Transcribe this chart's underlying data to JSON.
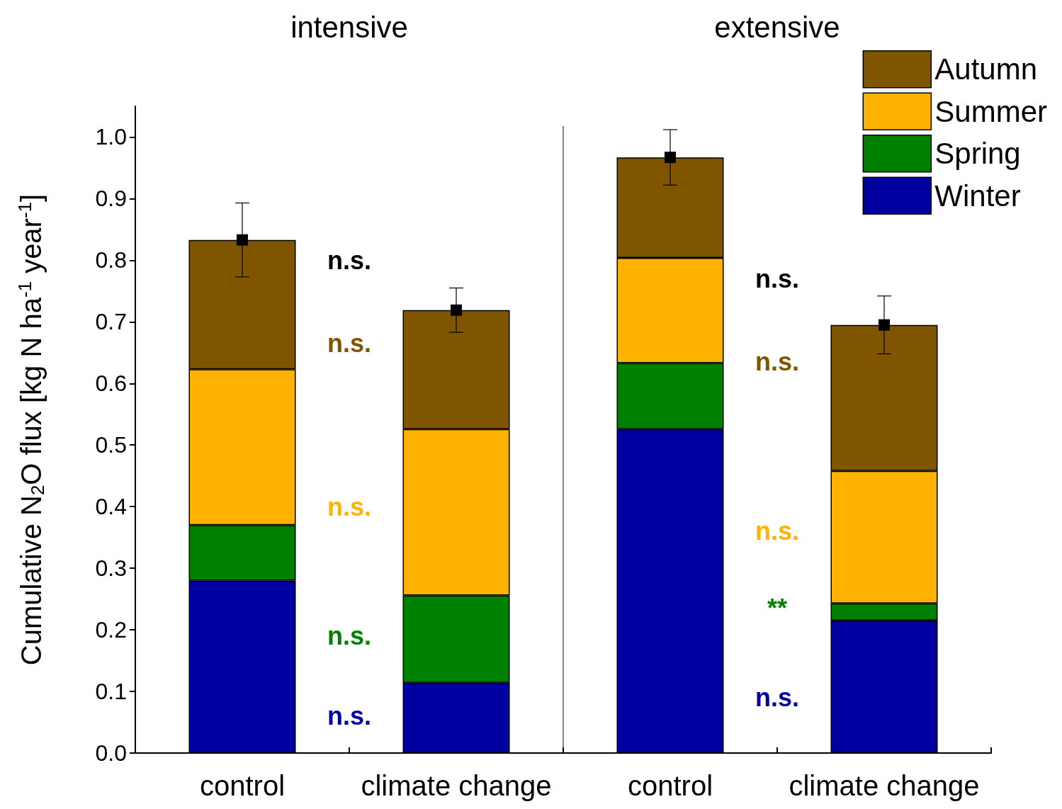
{
  "chart_data": {
    "type": "bar",
    "stacked": true,
    "ylabel": "Cumulative N$_{2}$O flux [kg N ha$^{-1}$ year$^{-1}$]",
    "categories": [
      "control",
      "climate change",
      "control",
      "climate change"
    ],
    "series": [
      {
        "name": "Winter",
        "color": "#0000a0",
        "values": [
          0.28,
          0.114,
          0.526,
          0.215
        ]
      },
      {
        "name": "Spring",
        "color": "#008000",
        "values": [
          0.09,
          0.142,
          0.107,
          0.028
        ]
      },
      {
        "name": "Summer",
        "color": "#ffb300",
        "values": [
          0.253,
          0.27,
          0.171,
          0.215
        ]
      },
      {
        "name": "Autumn",
        "color": "#7f5500",
        "values": [
          0.21,
          0.193,
          0.163,
          0.237
        ]
      },
      {
        "type": "scatter",
        "marker": "square",
        "color": "#000000",
        "values": [
          0.833,
          0.719,
          0.967,
          0.695
        ],
        "errors": [
          0.06,
          0.036,
          0.045,
          0.047
        ]
      }
    ],
    "ylim": [
      0,
      1.05
    ],
    "yticks": [
      {
        "value": 0,
        "label": "0.0"
      },
      0.1,
      0.2,
      0.3,
      0.4,
      0.5,
      0.6,
      0.7,
      0.8,
      0.9,
      {
        "value": 1,
        "label": "1.0"
      }
    ],
    "grid": false,
    "legend": "top right",
    "annotations": [
      "intensive",
      "extensive",
      "n.s.",
      "n.s.",
      "n.s.",
      "n.s.",
      "n.s.",
      "n.s.",
      "n.s.",
      "n.s.",
      "**",
      "n.s."
    ]
  }
}
